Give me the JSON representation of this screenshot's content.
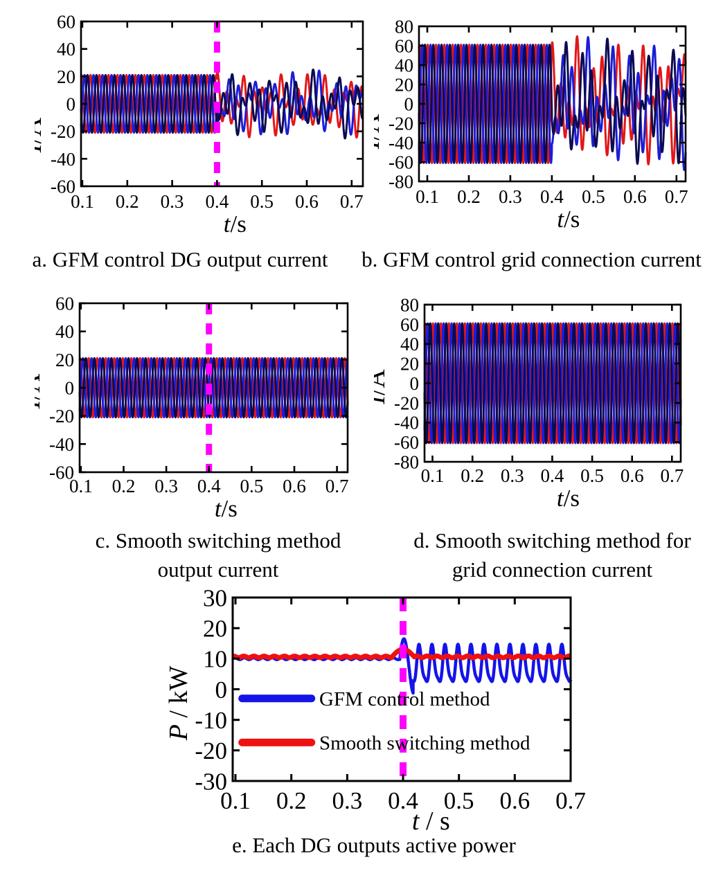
{
  "captions": {
    "a": "a. GFM control DG output current",
    "b": "b. GFM control grid connection current",
    "c1": "c. Smooth switching method",
    "c2": "output current",
    "d1": "d. Smooth switching method for",
    "d2": "grid connection current",
    "e": "e. Each DG outputs active power"
  },
  "colors": {
    "phase_red": "#e11717",
    "phase_blue": "#1d1dd8",
    "phase_navy": "#0b0b52",
    "power_blue": "#1414e8",
    "power_red": "#ef1111",
    "switch_marker": "#ff00ff",
    "axis": "#000000"
  },
  "chart_data": [
    {
      "id": "a",
      "type": "line",
      "caption": "a. GFM control DG output current",
      "xlabel": {
        "sym": "t",
        "rest": "/s"
      },
      "ylabel": {
        "sym": "I",
        "rest": "/A"
      },
      "xlim": [
        0.097,
        0.725
      ],
      "ylim": [
        -60,
        60
      ],
      "xticks": [
        0.1,
        0.2,
        0.3,
        0.4,
        0.5,
        0.6,
        0.7
      ],
      "xtick_labels": [
        "0.1",
        "0.2",
        "0.3",
        "0.4",
        "0.5",
        "0.6",
        "0.7"
      ],
      "yticks": [
        60,
        40,
        20,
        0,
        -20,
        -40,
        -60
      ],
      "ytick_labels": [
        "60",
        "40",
        "20",
        "0",
        "-20",
        "-40",
        "-60"
      ],
      "grid": false,
      "event_line": {
        "x": 0.4,
        "color": "#ff00ff"
      },
      "series": [
        {
          "name": "phase-a-red",
          "color": "#e11717",
          "width": 3,
          "segments": [
            {
              "t0": 0.097,
              "t1": 0.4,
              "base": 0,
              "comps": [
                {
                  "A": 21,
                  "f": 50,
                  "ph": 1.2
                }
              ]
            },
            {
              "t0": 0.4,
              "t1": 0.725,
              "base": 0,
              "comps": [
                {
                  "A": 11,
                  "f": 50,
                  "ph": 1.2
                },
                {
                  "A": 8,
                  "f": 21,
                  "ph": 0.9
                },
                {
                  "A": 7,
                  "f": 33.7,
                  "ph": 2.1
                }
              ]
            }
          ]
        },
        {
          "name": "phase-b-blue",
          "color": "#1d1dd8",
          "width": 3,
          "segments": [
            {
              "t0": 0.097,
              "t1": 0.4,
              "base": 0,
              "comps": [
                {
                  "A": 21,
                  "f": 50,
                  "ph": -0.894
                }
              ]
            },
            {
              "t0": 0.4,
              "t1": 0.725,
              "base": 0,
              "comps": [
                {
                  "A": 11,
                  "f": 50,
                  "ph": -0.894
                },
                {
                  "A": 8,
                  "f": 21,
                  "ph": -2.66
                },
                {
                  "A": 7,
                  "f": 33.7,
                  "ph": -2.72
                }
              ]
            }
          ]
        },
        {
          "name": "phase-c-navy",
          "color": "#0b0b52",
          "width": 3,
          "segments": [
            {
              "t0": 0.097,
              "t1": 0.4,
              "base": 0,
              "comps": [
                {
                  "A": 21,
                  "f": 50,
                  "ph": 3.294
                }
              ]
            },
            {
              "t0": 0.4,
              "t1": 0.725,
              "base": 0,
              "comps": [
                {
                  "A": 11,
                  "f": 50,
                  "ph": 3.294
                },
                {
                  "A": 8,
                  "f": 21,
                  "ph": 4.46
                },
                {
                  "A": 7,
                  "f": 33.7,
                  "ph": 0.64
                }
              ]
            }
          ]
        }
      ]
    },
    {
      "id": "b",
      "type": "line",
      "caption": "b. GFM control grid connection current",
      "xlabel": {
        "sym": "t",
        "rest": "/s"
      },
      "ylabel": {
        "sym": "I",
        "rest": "/A"
      },
      "xlim": [
        0.08,
        0.722
      ],
      "ylim": [
        -80,
        80
      ],
      "xticks": [
        0.1,
        0.2,
        0.3,
        0.4,
        0.5,
        0.6,
        0.7
      ],
      "xtick_labels": [
        "0.1",
        "0.2",
        "0.3",
        "0.4",
        "0.5",
        "0.6",
        "0.7"
      ],
      "yticks": [
        80,
        60,
        40,
        20,
        0,
        -20,
        -40,
        -60,
        -80
      ],
      "ytick_labels": [
        "80",
        "60",
        "40",
        "20",
        "0",
        "-20",
        "-40",
        "-60",
        "-80"
      ],
      "grid": false,
      "event_line": null,
      "series": [
        {
          "name": "phase-a-red",
          "color": "#e11717",
          "width": 3,
          "segments": [
            {
              "t0": 0.08,
              "t1": 0.4,
              "base": 0,
              "comps": [
                {
                  "A": 61,
                  "f": 50,
                  "ph": 1.2
                }
              ]
            },
            {
              "t0": 0.4,
              "t1": 0.722,
              "base": 0,
              "comps": [
                {
                  "A": 28,
                  "f": 50,
                  "ph": 1.2
                },
                {
                  "A": 24,
                  "f": 19.3,
                  "ph": 0.9
                },
                {
                  "A": 20,
                  "f": 31.7,
                  "ph": 2.1
                }
              ]
            }
          ]
        },
        {
          "name": "phase-b-blue",
          "color": "#1d1dd8",
          "width": 3,
          "segments": [
            {
              "t0": 0.08,
              "t1": 0.4,
              "base": 0,
              "comps": [
                {
                  "A": 61,
                  "f": 50,
                  "ph": -0.894
                }
              ]
            },
            {
              "t0": 0.4,
              "t1": 0.722,
              "base": 0,
              "comps": [
                {
                  "A": 28,
                  "f": 50,
                  "ph": -0.894
                },
                {
                  "A": 24,
                  "f": 19.3,
                  "ph": -2.66
                },
                {
                  "A": 20,
                  "f": 31.7,
                  "ph": -2.72
                }
              ]
            }
          ]
        },
        {
          "name": "phase-c-navy",
          "color": "#0b0b52",
          "width": 3,
          "segments": [
            {
              "t0": 0.08,
              "t1": 0.4,
              "base": 0,
              "comps": [
                {
                  "A": 61,
                  "f": 50,
                  "ph": 3.294
                }
              ]
            },
            {
              "t0": 0.4,
              "t1": 0.722,
              "base": 0,
              "comps": [
                {
                  "A": 28,
                  "f": 50,
                  "ph": 3.294
                },
                {
                  "A": 24,
                  "f": 19.3,
                  "ph": 4.46
                },
                {
                  "A": 20,
                  "f": 31.7,
                  "ph": 0.64
                }
              ]
            }
          ]
        }
      ]
    },
    {
      "id": "c",
      "type": "line",
      "caption": "c. Smooth switching method output current",
      "xlabel": {
        "sym": "t",
        "rest": "/s"
      },
      "ylabel": {
        "sym": "I",
        "rest": "/A"
      },
      "xlim": [
        0.097,
        0.725
      ],
      "ylim": [
        -60,
        60
      ],
      "xticks": [
        0.1,
        0.2,
        0.3,
        0.4,
        0.5,
        0.6,
        0.7
      ],
      "xtick_labels": [
        "0.1",
        "0.2",
        "0.3",
        "0.4",
        "0.5",
        "0.6",
        "0.7"
      ],
      "yticks": [
        60,
        40,
        20,
        0,
        -20,
        -40,
        -60
      ],
      "ytick_labels": [
        "60",
        "40",
        "20",
        "0",
        "-20",
        "-40",
        "-60"
      ],
      "grid": false,
      "event_line": {
        "x": 0.4,
        "color": "#ff00ff"
      },
      "series": [
        {
          "name": "phase-a-red",
          "color": "#e11717",
          "width": 3,
          "segments": [
            {
              "t0": 0.097,
              "t1": 0.725,
              "base": 0,
              "comps": [
                {
                  "A": 21,
                  "f": 50,
                  "ph": 1.2
                }
              ]
            }
          ]
        },
        {
          "name": "phase-b-blue",
          "color": "#1d1dd8",
          "width": 3,
          "segments": [
            {
              "t0": 0.097,
              "t1": 0.725,
              "base": 0,
              "comps": [
                {
                  "A": 21,
                  "f": 50,
                  "ph": -0.894
                }
              ]
            }
          ]
        },
        {
          "name": "phase-c-navy",
          "color": "#0b0b52",
          "width": 3,
          "segments": [
            {
              "t0": 0.097,
              "t1": 0.725,
              "base": 0,
              "comps": [
                {
                  "A": 21,
                  "f": 50,
                  "ph": 3.294
                }
              ]
            }
          ]
        }
      ]
    },
    {
      "id": "d",
      "type": "line",
      "caption": "d. Smooth switching method for grid connection current",
      "xlabel": {
        "sym": "t",
        "rest": "/s"
      },
      "ylabel": {
        "sym": "I",
        "rest": "/A"
      },
      "xlim": [
        0.08,
        0.722
      ],
      "ylim": [
        -80,
        80
      ],
      "xticks": [
        0.1,
        0.2,
        0.3,
        0.4,
        0.5,
        0.6,
        0.7
      ],
      "xtick_labels": [
        "0.1",
        "0.2",
        "0.3",
        "0.4",
        "0.5",
        "0.6",
        "0.7"
      ],
      "yticks": [
        80,
        60,
        40,
        20,
        0,
        -20,
        -40,
        -60,
        -80
      ],
      "ytick_labels": [
        "80",
        "60",
        "40",
        "20",
        "0",
        "-20",
        "-40",
        "-60",
        "-80"
      ],
      "grid": false,
      "event_line": null,
      "series": [
        {
          "name": "phase-a-red",
          "color": "#e11717",
          "width": 3,
          "segments": [
            {
              "t0": 0.08,
              "t1": 0.722,
              "base": 0,
              "comps": [
                {
                  "A": 61,
                  "f": 50,
                  "ph": 1.2
                }
              ]
            }
          ]
        },
        {
          "name": "phase-b-blue",
          "color": "#1d1dd8",
          "width": 3,
          "segments": [
            {
              "t0": 0.08,
              "t1": 0.722,
              "base": 0,
              "comps": [
                {
                  "A": 61,
                  "f": 50,
                  "ph": -0.894
                }
              ]
            }
          ]
        },
        {
          "name": "phase-c-navy",
          "color": "#0b0b52",
          "width": 3,
          "segments": [
            {
              "t0": 0.08,
              "t1": 0.722,
              "base": 0,
              "comps": [
                {
                  "A": 61,
                  "f": 50,
                  "ph": 3.294
                }
              ]
            }
          ]
        }
      ]
    },
    {
      "id": "e",
      "type": "line",
      "caption": "e. Each DG outputs active power",
      "xlabel": {
        "sym": "t",
        "rest": " / s"
      },
      "ylabel": {
        "sym": "P",
        "rest": " / kW"
      },
      "xlim": [
        0.095,
        0.7
      ],
      "ylim": [
        -30,
        30
      ],
      "xticks": [
        0.1,
        0.2,
        0.3,
        0.4,
        0.5,
        0.6,
        0.7
      ],
      "xtick_labels": [
        "0.1",
        "0.2",
        "0.3",
        "0.4",
        "0.5",
        "0.6",
        "0.7"
      ],
      "yticks": [
        30,
        20,
        10,
        0,
        -10,
        -20,
        -30
      ],
      "ytick_labels": [
        "30",
        "20",
        "10",
        "0",
        "-10",
        "-20",
        "-30"
      ],
      "grid": false,
      "event_line": {
        "x": 0.4,
        "color": "#ff00ff"
      },
      "legend": {
        "position": "inside-left",
        "items": [
          {
            "label": "GFM control method",
            "color": "#1414e8",
            "y": -3,
            "x0": 0.112,
            "x1": 0.236,
            "tx": 0.25
          },
          {
            "label": "Smooth switching method",
            "color": "#ef1111",
            "y": -17.4,
            "x0": 0.112,
            "x1": 0.236,
            "tx": 0.25
          }
        ]
      },
      "series": [
        {
          "name": "gfm-power-blue",
          "color": "#1414e8",
          "width": 4.5,
          "segments": [
            {
              "t0": 0.095,
              "t1": 0.394,
              "base": 10,
              "comps": [
                {
                  "A": 0.3,
                  "f": 60,
                  "ph": 0
                }
              ]
            },
            {
              "t0": 0.394,
              "t1": 0.418,
              "base": 7.5,
              "comps": [
                {
                  "A": 9,
                  "f": 28,
                  "ph": 0.25
                }
              ]
            },
            {
              "t0": 0.418,
              "t1": 0.7,
              "base": 7.5,
              "comps": [
                {
                  "A": 5.8,
                  "f": 43,
                  "ph": -1.4
                },
                {
                  "A": 1.5,
                  "f": 86,
                  "ph": 2.4
                }
              ]
            }
          ]
        },
        {
          "name": "smooth-power-red",
          "color": "#ef1111",
          "width": 7,
          "segments": [
            {
              "t0": 0.095,
              "t1": 0.38,
              "base": 10.6,
              "comps": [
                {
                  "A": 0.25,
                  "f": 55,
                  "ph": 1
                }
              ]
            },
            {
              "t0": 0.38,
              "t1": 0.42,
              "base": 10.6,
              "comps": [
                {
                  "A": 2.5,
                  "f": 12.5,
                  "ph": 0
                }
              ]
            },
            {
              "t0": 0.42,
              "t1": 0.7,
              "base": 10.6,
              "comps": [
                {
                  "A": 0.3,
                  "f": 55,
                  "ph": 0
                }
              ]
            }
          ]
        }
      ]
    }
  ]
}
